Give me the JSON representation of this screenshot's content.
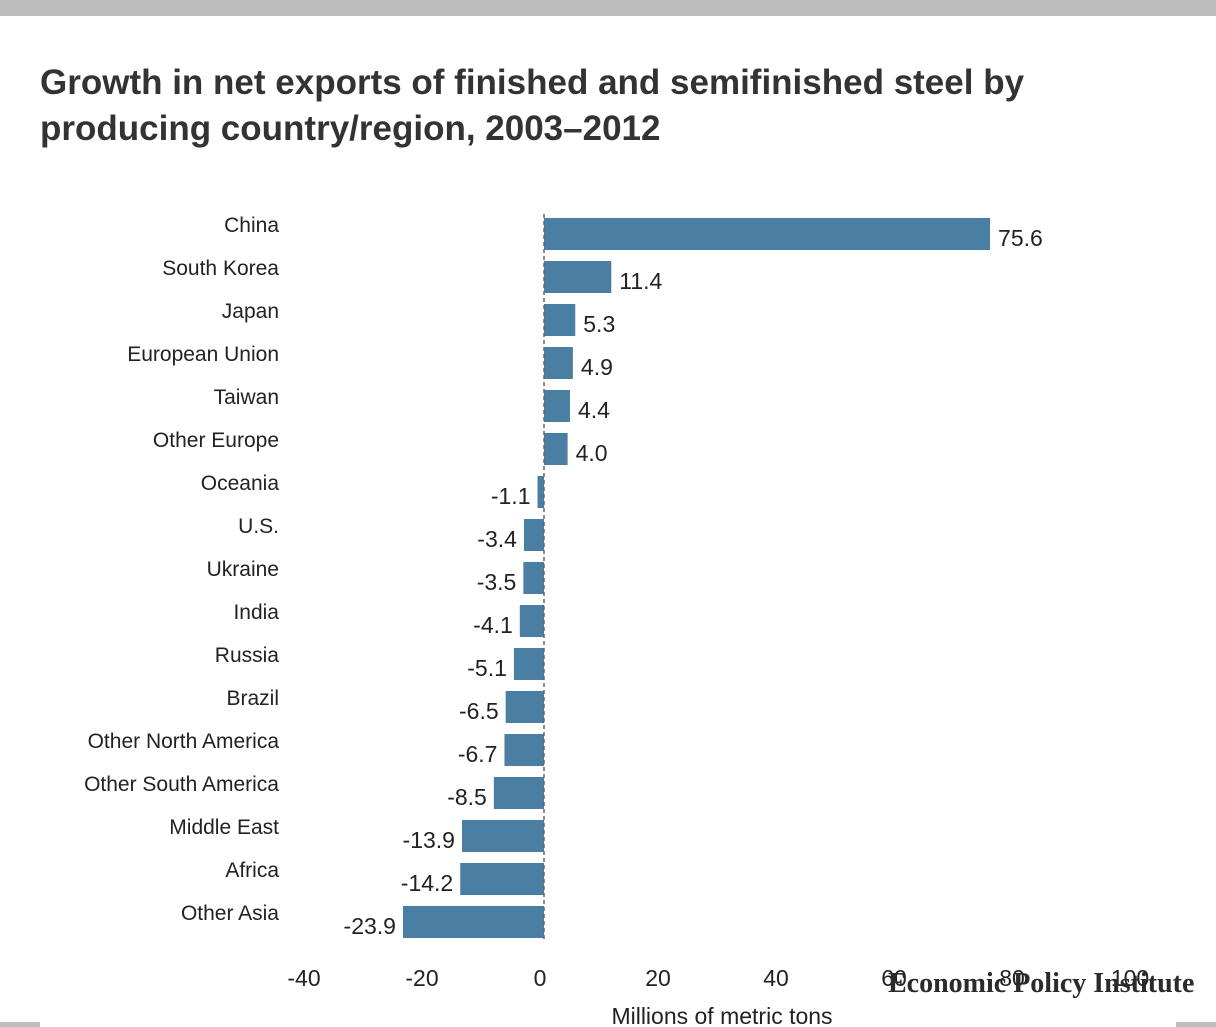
{
  "page": {
    "title": "Growth in net exports of finished and semifinished steel by producing country/region, 2003–2012",
    "logo_text": "Economic Policy Institute"
  },
  "chart_data": {
    "type": "bar",
    "orientation": "horizontal",
    "title": "Growth in net exports of finished and semifinished steel by producing country/region, 2003–2012",
    "xlabel": "Millions of metric tons",
    "ylabel": "",
    "xlim": [
      -40,
      100
    ],
    "xticks": [
      -40,
      -20,
      0,
      20,
      40,
      60,
      80,
      100
    ],
    "categories": [
      "China",
      "South Korea",
      "Japan",
      "European Union",
      "Taiwan",
      "Other Europe",
      "Oceania",
      "U.S.",
      "Ukraine",
      "India",
      "Russia",
      "Brazil",
      "Other North America",
      "Other South America",
      "Middle East",
      "Africa",
      "Other Asia"
    ],
    "values": [
      75.6,
      11.4,
      5.3,
      4.9,
      4.4,
      4.0,
      -1.1,
      -3.4,
      -3.5,
      -4.1,
      -5.1,
      -6.5,
      -6.7,
      -8.5,
      -13.9,
      -14.2,
      -23.9
    ],
    "value_labels": [
      "75.6",
      "11.4",
      "5.3",
      "4.9",
      "4.4",
      "4.0",
      "-1.1",
      "-3.4",
      "-3.5",
      "-4.1",
      "-5.1",
      "-6.5",
      "-6.7",
      "-8.5",
      "-13.9",
      "-14.2",
      "-23.9"
    ],
    "bar_color": "#4a7fa3",
    "zero_line": "dashed",
    "grid": false,
    "legend": "none"
  }
}
